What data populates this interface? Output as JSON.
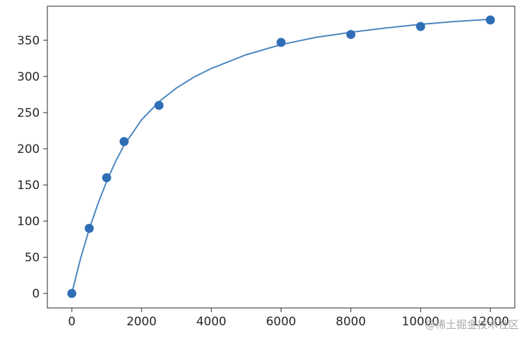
{
  "chart_data": {
    "type": "scatter",
    "title": "",
    "xlabel": "",
    "ylabel": "",
    "xlim": [
      -700,
      12700
    ],
    "ylim": [
      -20,
      397
    ],
    "x_ticks": [
      0,
      2000,
      4000,
      6000,
      8000,
      10000,
      12000
    ],
    "x_tick_labels": [
      "0",
      "2000",
      "4000",
      "6000",
      "8000",
      "10000",
      "12000"
    ],
    "y_ticks": [
      0,
      50,
      100,
      150,
      200,
      250,
      300,
      350
    ],
    "y_tick_labels": [
      "0",
      "50",
      "100",
      "150",
      "200",
      "250",
      "300",
      "350"
    ],
    "grid": false,
    "legend": false,
    "series": [
      {
        "kind": "scatter",
        "color": "#2f6eb5",
        "x": [
          0,
          500,
          1000,
          1500,
          2500,
          6000,
          8000,
          10000,
          12000
        ],
        "y": [
          0,
          90,
          160,
          210,
          260,
          347,
          358,
          369,
          378
        ]
      },
      {
        "kind": "line",
        "color": "#4a86c0",
        "x": [
          0,
          250,
          500,
          750,
          1000,
          1250,
          1500,
          2000,
          2500,
          3000,
          3500,
          4000,
          5000,
          6000,
          7000,
          8000,
          9000,
          10000,
          11000,
          12000
        ],
        "y": [
          0,
          48,
          89,
          124,
          155,
          182,
          205,
          240,
          265,
          284,
          299,
          311,
          330,
          344,
          354,
          361,
          367,
          372,
          376,
          379
        ]
      }
    ]
  },
  "watermark": "@稀土掘金技术社区"
}
